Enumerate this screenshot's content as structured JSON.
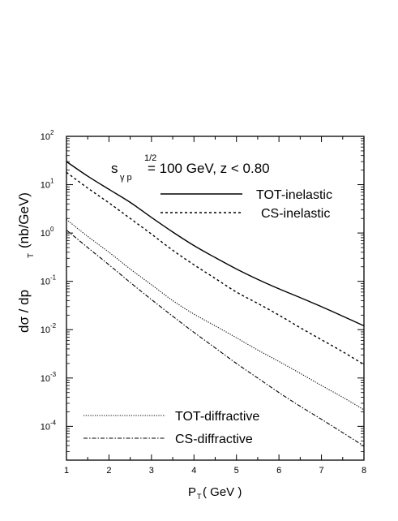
{
  "chart_data": {
    "type": "line",
    "title": "",
    "xlabel": "P",
    "xlabel_sub": "T",
    "xlabel_unit": "( GeV )",
    "ylabel": "dσ / dp",
    "ylabel_sub": "T",
    "ylabel_unit": "(nb/GeV)",
    "xlim": [
      1,
      8
    ],
    "ylim": [
      2e-05,
      100
    ],
    "yscale": "log",
    "grid": false,
    "legend_placement": "upper-right and lower-left",
    "x_ticks": [
      "1",
      "2",
      "3",
      "4",
      "5",
      "6",
      "7",
      "8"
    ],
    "y_ticks": [
      {
        "base": "10",
        "exp": "2",
        "value": 100
      },
      {
        "base": "10",
        "exp": "1",
        "value": 10
      },
      {
        "base": "10",
        "exp": "0",
        "value": 1
      },
      {
        "base": "10",
        "exp": "-1",
        "value": 0.1
      },
      {
        "base": "10",
        "exp": "-2",
        "value": 0.01
      },
      {
        "base": "10",
        "exp": "-3",
        "value": 0.001
      },
      {
        "base": "10",
        "exp": "-4",
        "value": 0.0001
      }
    ],
    "annotation": {
      "s": "s",
      "sub": "γ p",
      "sup": "1/2",
      "rest": " = 100 GeV, z < 0.80"
    },
    "series": [
      {
        "name": "TOT-inelastic",
        "style": "solid",
        "x": [
          1,
          1.5,
          2,
          2.5,
          3,
          3.5,
          4,
          4.5,
          5,
          5.5,
          6,
          6.5,
          7,
          7.5,
          8
        ],
        "y": [
          30,
          15,
          8,
          4.3,
          2.1,
          1.05,
          0.55,
          0.31,
          0.18,
          0.11,
          0.07,
          0.046,
          0.03,
          0.019,
          0.012
        ]
      },
      {
        "name": "CS-inelastic",
        "style": "dotted",
        "x": [
          1,
          1.5,
          2,
          2.5,
          3,
          3.5,
          4,
          4.5,
          5,
          5.5,
          6,
          6.5,
          7,
          7.5,
          8
        ],
        "y": [
          18,
          8.5,
          4.2,
          2.0,
          0.95,
          0.44,
          0.22,
          0.115,
          0.06,
          0.035,
          0.02,
          0.011,
          0.0062,
          0.0035,
          0.0019
        ]
      },
      {
        "name": "TOT-diffractive",
        "style": "fine-dotted",
        "x": [
          1,
          1.5,
          2,
          2.5,
          3,
          3.5,
          4,
          4.5,
          5,
          5.5,
          6,
          6.5,
          7,
          7.5,
          8
        ],
        "y": [
          1.9,
          0.85,
          0.4,
          0.18,
          0.085,
          0.04,
          0.021,
          0.012,
          0.0068,
          0.0038,
          0.0022,
          0.00125,
          0.0007,
          0.0004,
          0.00022
        ]
      },
      {
        "name": "CS-diffractive",
        "style": "dash-dot",
        "x": [
          1,
          1.5,
          2,
          2.5,
          3,
          3.5,
          4,
          4.5,
          5,
          5.5,
          6,
          6.5,
          7,
          7.5,
          8
        ],
        "y": [
          1.15,
          0.5,
          0.22,
          0.095,
          0.042,
          0.019,
          0.0088,
          0.0042,
          0.002,
          0.001,
          0.0005,
          0.00026,
          0.00014,
          7.4e-05,
          3.9e-05
        ]
      }
    ]
  }
}
